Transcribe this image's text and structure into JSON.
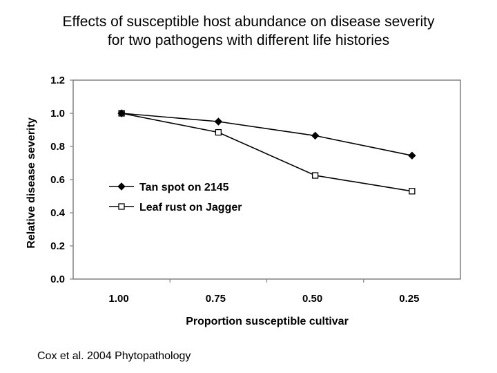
{
  "title_lines": [
    "Effects of susceptible host abundance on disease severity",
    "for two pathogens with different life histories"
  ],
  "citation": "Cox et al. 2004 Phytopathology",
  "chart_data": {
    "type": "line",
    "title": "Effects of susceptible host abundance on disease severity for two pathogens with different life histories",
    "xlabel": "Proportion susceptible cultivar",
    "ylabel": "Relative disease severity",
    "categories": [
      "1.00",
      "0.75",
      "0.50",
      "0.25"
    ],
    "ylim": [
      0,
      1.2
    ],
    "yticks": [
      "0.0",
      "0.2",
      "0.4",
      "0.6",
      "0.8",
      "1.0",
      "1.2"
    ],
    "grid": false,
    "legend_position": "center-left",
    "series": [
      {
        "name": "Tan spot on 2145",
        "marker": "filled-diamond",
        "values": [
          1.0,
          0.95,
          0.865,
          0.745
        ]
      },
      {
        "name": "Leaf rust on Jagger",
        "marker": "open-square",
        "values": [
          1.0,
          0.885,
          0.625,
          0.53
        ]
      }
    ],
    "colors": {
      "line": "#000000",
      "frame": "#808080",
      "background": "#ffffff"
    }
  }
}
